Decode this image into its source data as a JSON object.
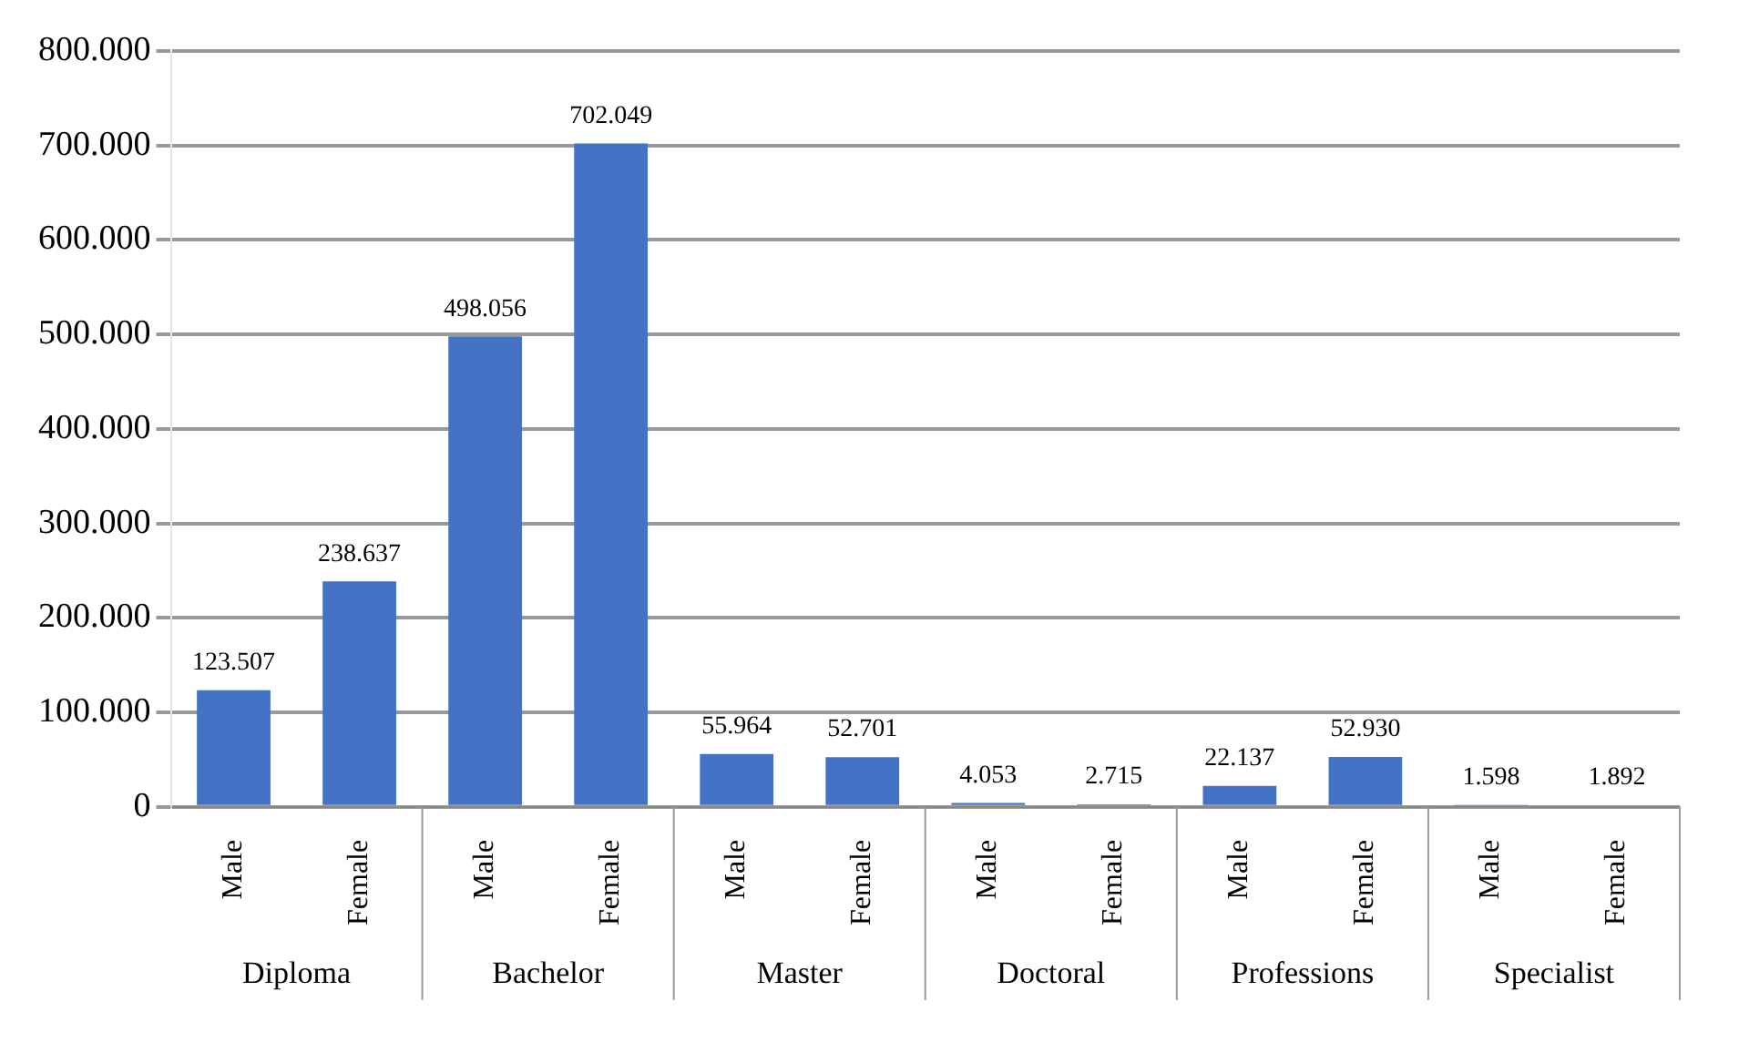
{
  "chart_data": {
    "type": "bar",
    "categories": [
      "Male",
      "Female",
      "Male",
      "Female",
      "Male",
      "Female",
      "Male",
      "Female",
      "Male",
      "Female",
      "Male",
      "Female"
    ],
    "values": [
      123507,
      238637,
      498056,
      702049,
      55964,
      52701,
      4053,
      2715,
      22137,
      52930,
      1598,
      1892
    ],
    "value_labels": [
      "123.507",
      "238.637",
      "498.056",
      "702.049",
      "55.964",
      "52.701",
      "4.053",
      "2.715",
      "22.137",
      "52.930",
      "1.598",
      "1.892"
    ],
    "color": "#4472c4",
    "annotations": [
      "Diploma",
      "Bachelor",
      "Master",
      "Doctoral",
      "Professions",
      "Specialist"
    ],
    "ylim": [
      0,
      800000
    ],
    "yticks": [
      {
        "value": 0,
        "label": "0"
      },
      {
        "value": 100000,
        "label": "100.000"
      },
      {
        "value": 200000,
        "label": "200.000"
      },
      {
        "value": 300000,
        "label": "300.000"
      },
      {
        "value": 400000,
        "label": "400.000"
      },
      {
        "value": 500000,
        "label": "500.000"
      },
      {
        "value": 600000,
        "label": "600.000"
      },
      {
        "value": 700000,
        "label": "700.000"
      },
      {
        "value": 800000,
        "label": "800.000"
      }
    ],
    "grid": "y",
    "legend": false
  }
}
